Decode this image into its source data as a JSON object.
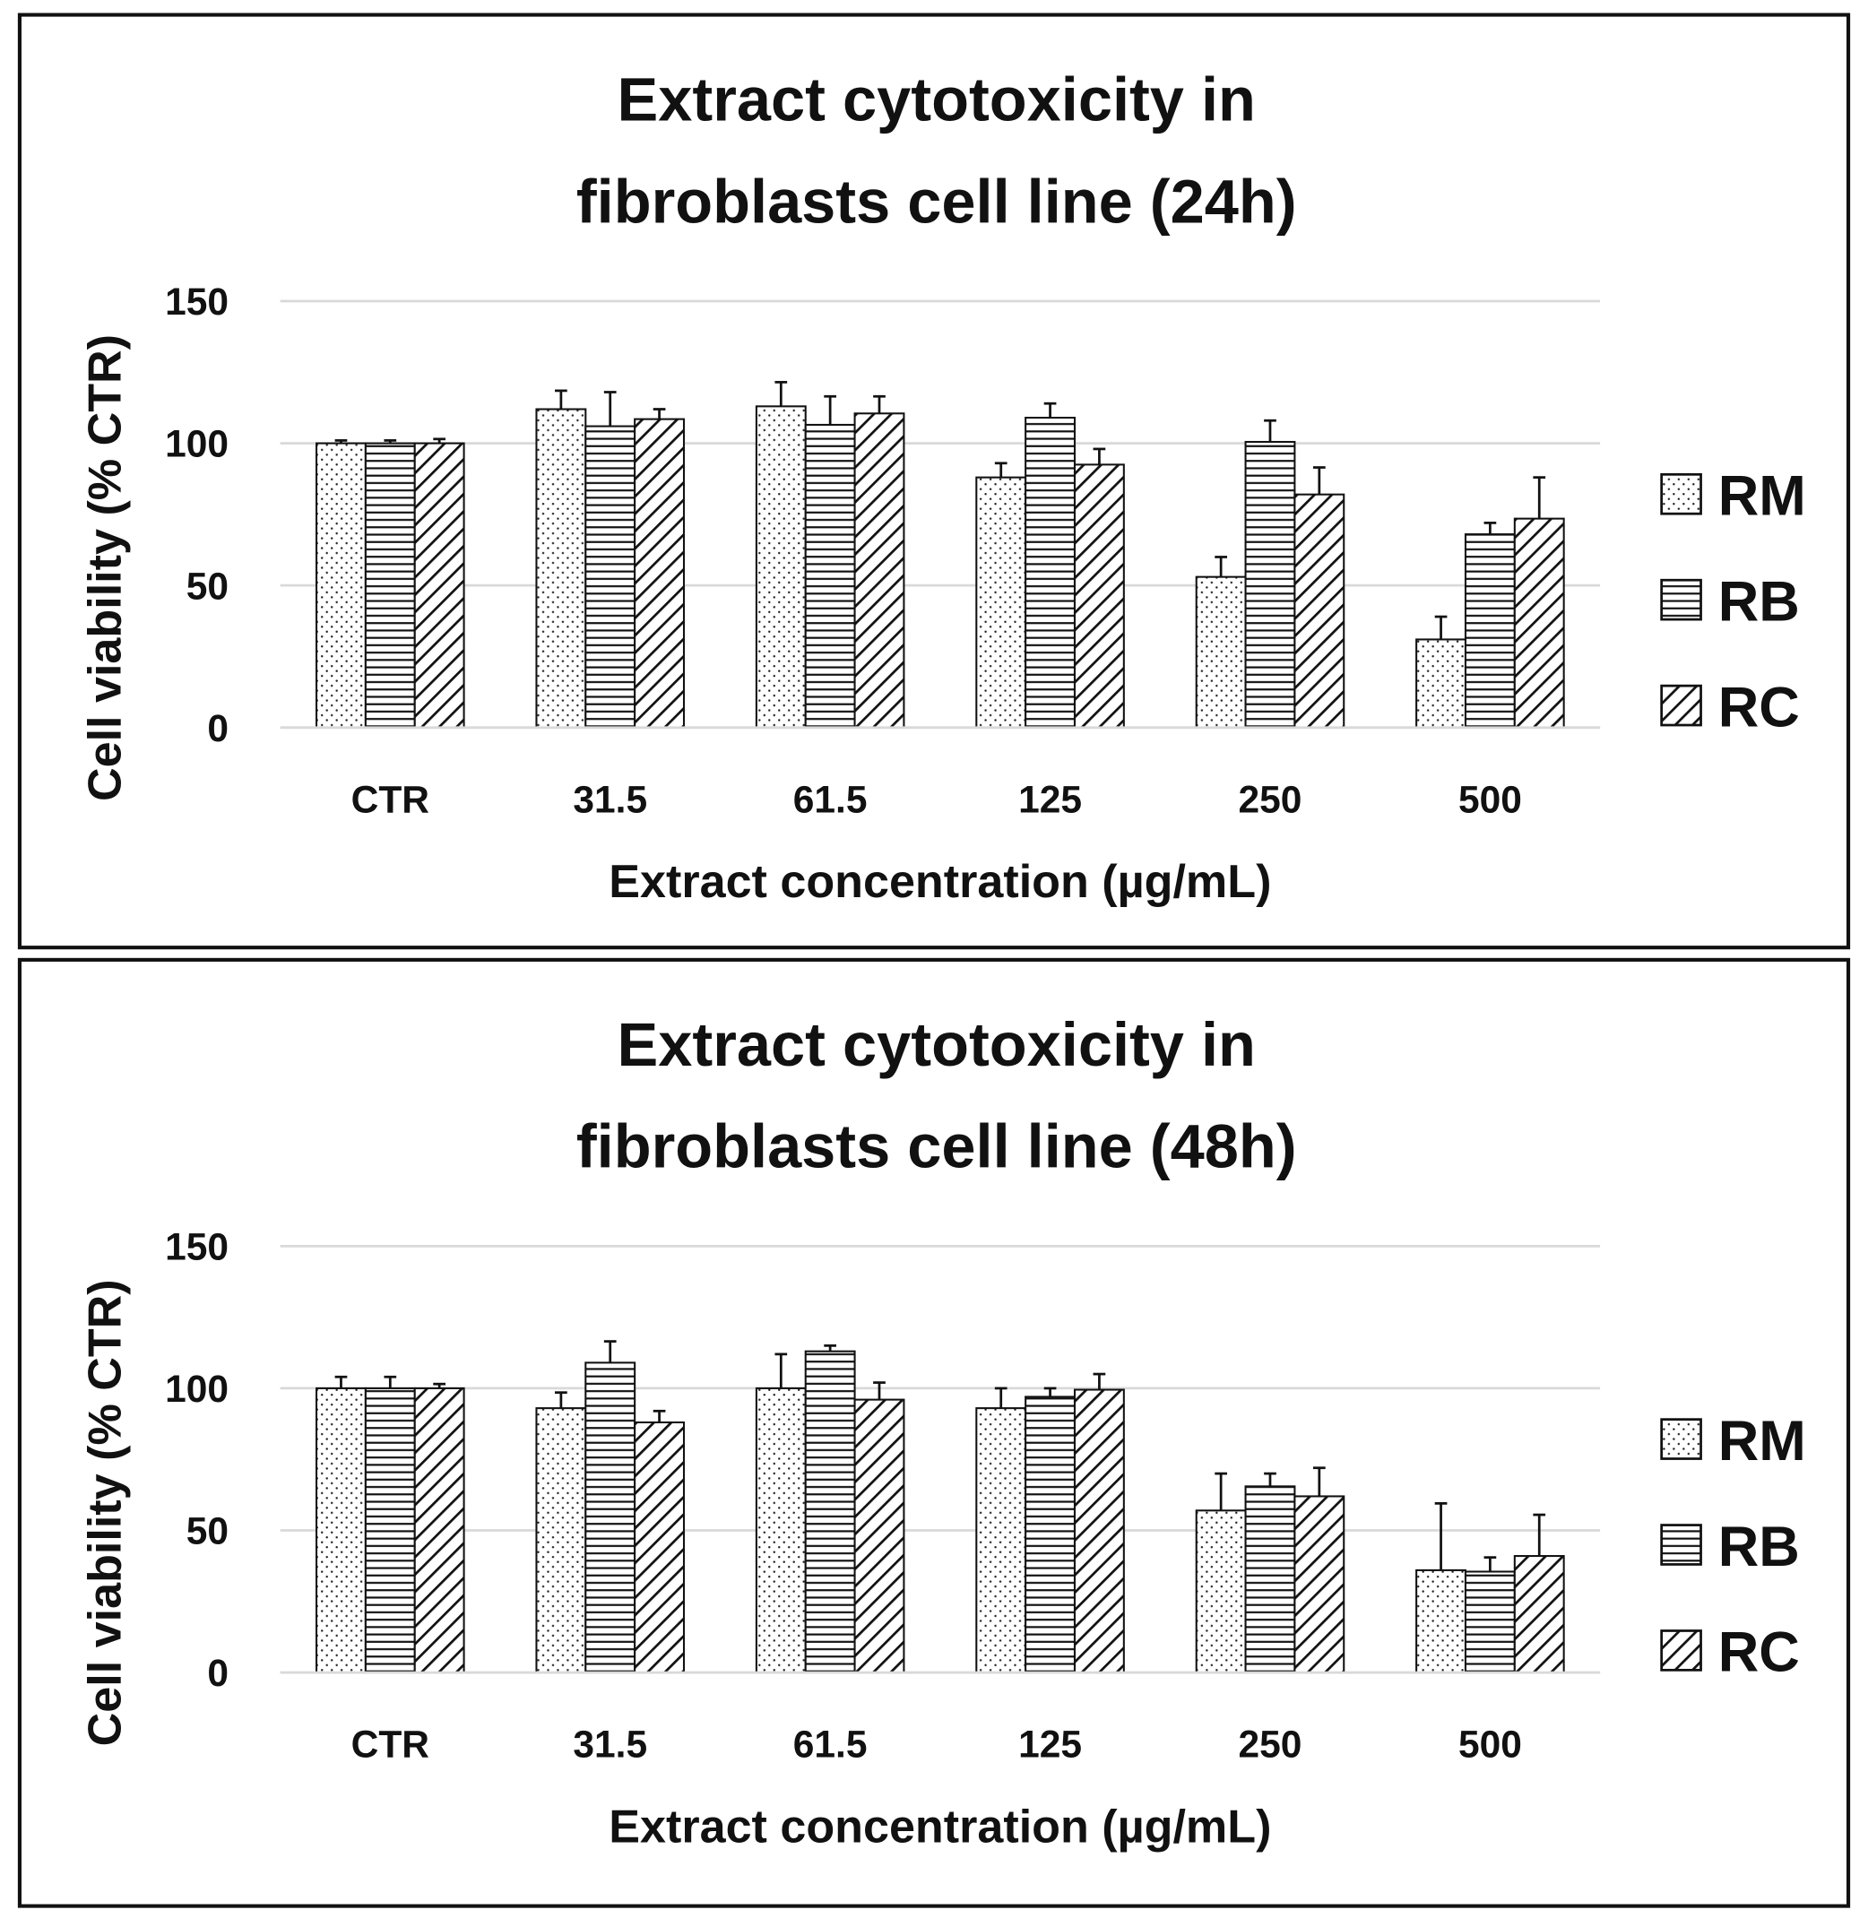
{
  "chart_data": [
    {
      "type": "bar",
      "title": [
        "Extract cytotoxicity in",
        "fibroblasts cell line (24h)"
      ],
      "xlabel": "Extract concentration (µg/mL)",
      "ylabel": "Cell viability (% CTR)",
      "categories": [
        "CTR",
        "31.5",
        "61.5",
        "125",
        "250",
        "500"
      ],
      "ylim": [
        0,
        150
      ],
      "yticks": [
        "0",
        "50",
        "100",
        "150"
      ],
      "grid": true,
      "legend": "right",
      "series": [
        {
          "name": "RM",
          "pattern": "dots",
          "values": [
            100,
            112,
            113,
            88,
            53,
            31
          ],
          "errors": [
            1,
            6.5,
            8.5,
            5,
            7,
            8
          ]
        },
        {
          "name": "RB",
          "pattern": "horizontal-lines",
          "values": [
            100,
            106,
            106.5,
            109,
            100.5,
            68
          ],
          "errors": [
            1,
            12,
            10,
            5,
            7.5,
            4
          ]
        },
        {
          "name": "RC",
          "pattern": "diagonal-lines",
          "values": [
            100,
            108.5,
            110.5,
            92.5,
            82,
            73.5
          ],
          "errors": [
            1.5,
            3.5,
            6,
            5.5,
            9.5,
            14.5
          ]
        }
      ]
    },
    {
      "type": "bar",
      "title": [
        "Extract cytotoxicity in",
        "fibroblasts cell line (48h)"
      ],
      "xlabel": "Extract concentration (µg/mL)",
      "ylabel": "Cell viability (% CTR)",
      "categories": [
        "CTR",
        "31.5",
        "61.5",
        "125",
        "250",
        "500"
      ],
      "ylim": [
        0,
        150
      ],
      "yticks": [
        "0",
        "50",
        "100",
        "150"
      ],
      "grid": true,
      "legend": "right",
      "series": [
        {
          "name": "RM",
          "pattern": "dots",
          "values": [
            100,
            93,
            100,
            93,
            57,
            36
          ],
          "errors": [
            4,
            5.5,
            12,
            7,
            13,
            23.5
          ]
        },
        {
          "name": "RB",
          "pattern": "horizontal-lines",
          "values": [
            100,
            109,
            113,
            97,
            65.5,
            35.5
          ],
          "errors": [
            4,
            7.5,
            2,
            3,
            4.5,
            5
          ]
        },
        {
          "name": "RC",
          "pattern": "diagonal-lines",
          "values": [
            100,
            88,
            96,
            99.5,
            62,
            41
          ],
          "errors": [
            1.5,
            4,
            6,
            5.5,
            10,
            14.5
          ]
        }
      ]
    }
  ]
}
